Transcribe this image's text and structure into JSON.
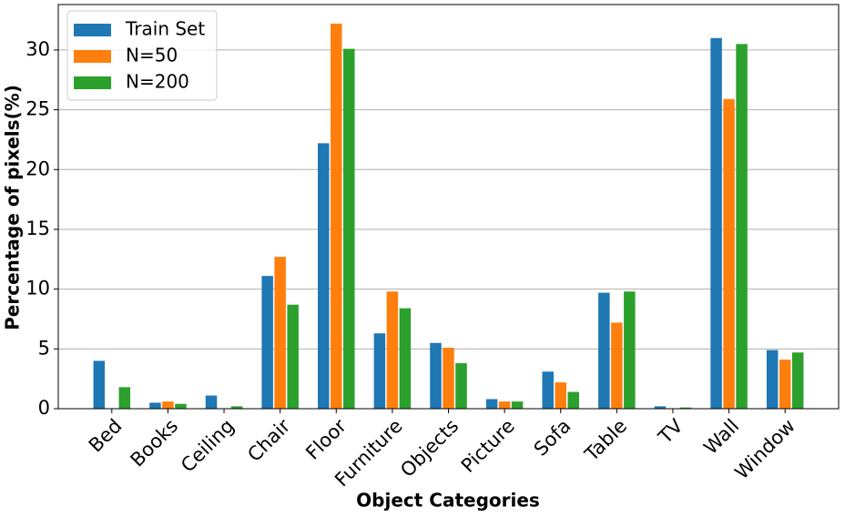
{
  "chart_data": {
    "type": "bar",
    "xlabel": "Object Categories",
    "ylabel": "Percentage of pixels(%)",
    "categories": [
      "Bed",
      "Books",
      "Ceiling",
      "Chair",
      "Floor",
      "Furniture",
      "Objects",
      "Picture",
      "Sofa",
      "Table",
      "TV",
      "Wall",
      "Window"
    ],
    "series": [
      {
        "name": "Train Set",
        "color": "#1f77b4",
        "values": [
          4.0,
          0.5,
          1.1,
          11.1,
          22.2,
          6.3,
          5.5,
          0.8,
          3.1,
          9.7,
          0.2,
          31.0,
          4.9
        ]
      },
      {
        "name": "N=50",
        "color": "#ff7f0e",
        "values": [
          0,
          0.6,
          0,
          12.7,
          32.2,
          9.8,
          5.1,
          0.6,
          2.2,
          7.2,
          0,
          25.9,
          4.1
        ]
      },
      {
        "name": "N=200",
        "color": "#2ca02c",
        "values": [
          1.8,
          0.4,
          0.2,
          8.7,
          30.1,
          8.4,
          3.8,
          0.6,
          1.4,
          9.8,
          0.1,
          30.5,
          4.7
        ]
      }
    ],
    "ylim": [
      0,
      33.8
    ],
    "yticks": [
      0,
      5,
      10,
      15,
      20,
      25,
      30
    ],
    "grid": true,
    "legend": "upper left"
  }
}
